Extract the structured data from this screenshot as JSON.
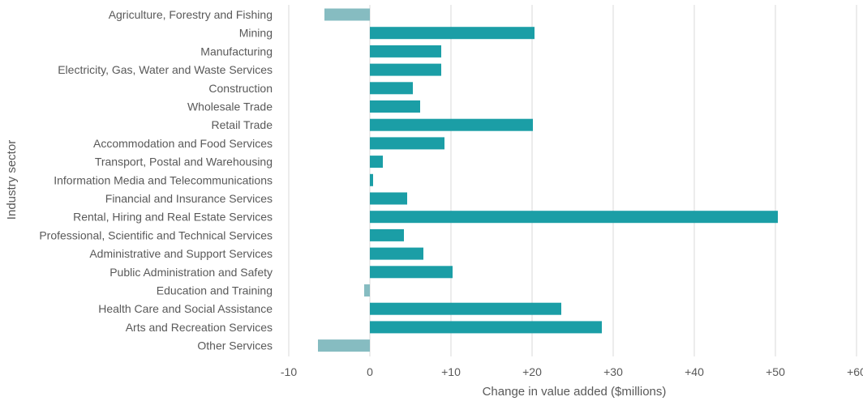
{
  "chart_data": {
    "type": "bar",
    "orientation": "horizontal",
    "xlabel": "Change in value added ($millions)",
    "ylabel": "Industry sector",
    "xlim": [
      -10,
      60
    ],
    "xticks": [
      -10,
      0,
      10,
      20,
      30,
      40,
      50,
      60
    ],
    "xtick_labels": [
      "-10",
      "0",
      "+10",
      "+20",
      "+30",
      "+40",
      "+50",
      "+60"
    ],
    "grid": "vertical",
    "colors": {
      "positive": "#1b9ea6",
      "negative": "#86bcc1"
    },
    "categories": [
      "Agriculture, Forestry and Fishing",
      "Mining",
      "Manufacturing",
      "Electricity, Gas, Water and Waste Services",
      "Construction",
      "Wholesale Trade",
      "Retail Trade",
      "Accommodation and Food Services",
      "Transport, Postal and Warehousing",
      "Information Media and Telecommunications",
      "Financial and Insurance Services",
      "Rental, Hiring and Real Estate Services",
      "Professional, Scientific and Technical Services",
      "Administrative and Support Services",
      "Public Administration and Safety",
      "Education and Training",
      "Health Care and Social Assistance",
      "Arts and Recreation Services",
      "Other Services"
    ],
    "values": [
      -5.6,
      20.3,
      8.8,
      8.8,
      5.3,
      6.2,
      20.1,
      9.2,
      1.6,
      0.4,
      4.6,
      50.3,
      4.2,
      6.6,
      10.2,
      -0.7,
      23.6,
      28.6,
      -6.4
    ]
  }
}
